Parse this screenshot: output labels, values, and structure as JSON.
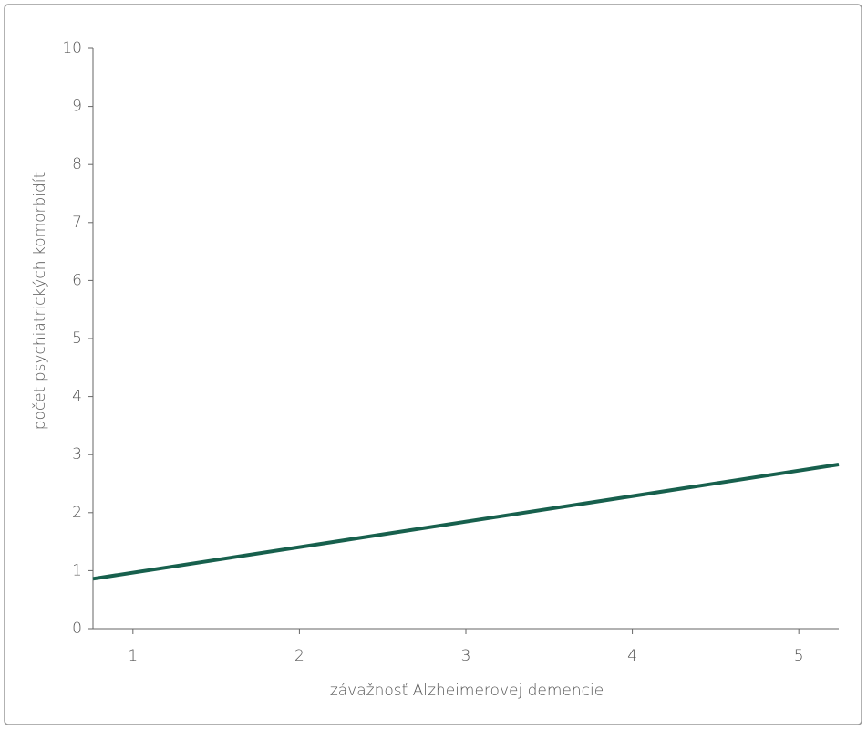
{
  "chart_data": {
    "type": "line",
    "xlabel": "závažnosť Alzheimerovej demencie",
    "ylabel": "počet psychiatrických komorbidít",
    "x": [
      0.76,
      5.24
    ],
    "series": [
      {
        "color": "#17604d",
        "values": [
          0.86,
          2.83
        ]
      }
    ],
    "xlim": [
      0.76,
      5.24
    ],
    "xticks": [
      1,
      2,
      3,
      4,
      5
    ],
    "ylim": [
      0,
      10
    ],
    "yticks": [
      0,
      1,
      2,
      3,
      4,
      5,
      6,
      7,
      8,
      9,
      10
    ]
  }
}
